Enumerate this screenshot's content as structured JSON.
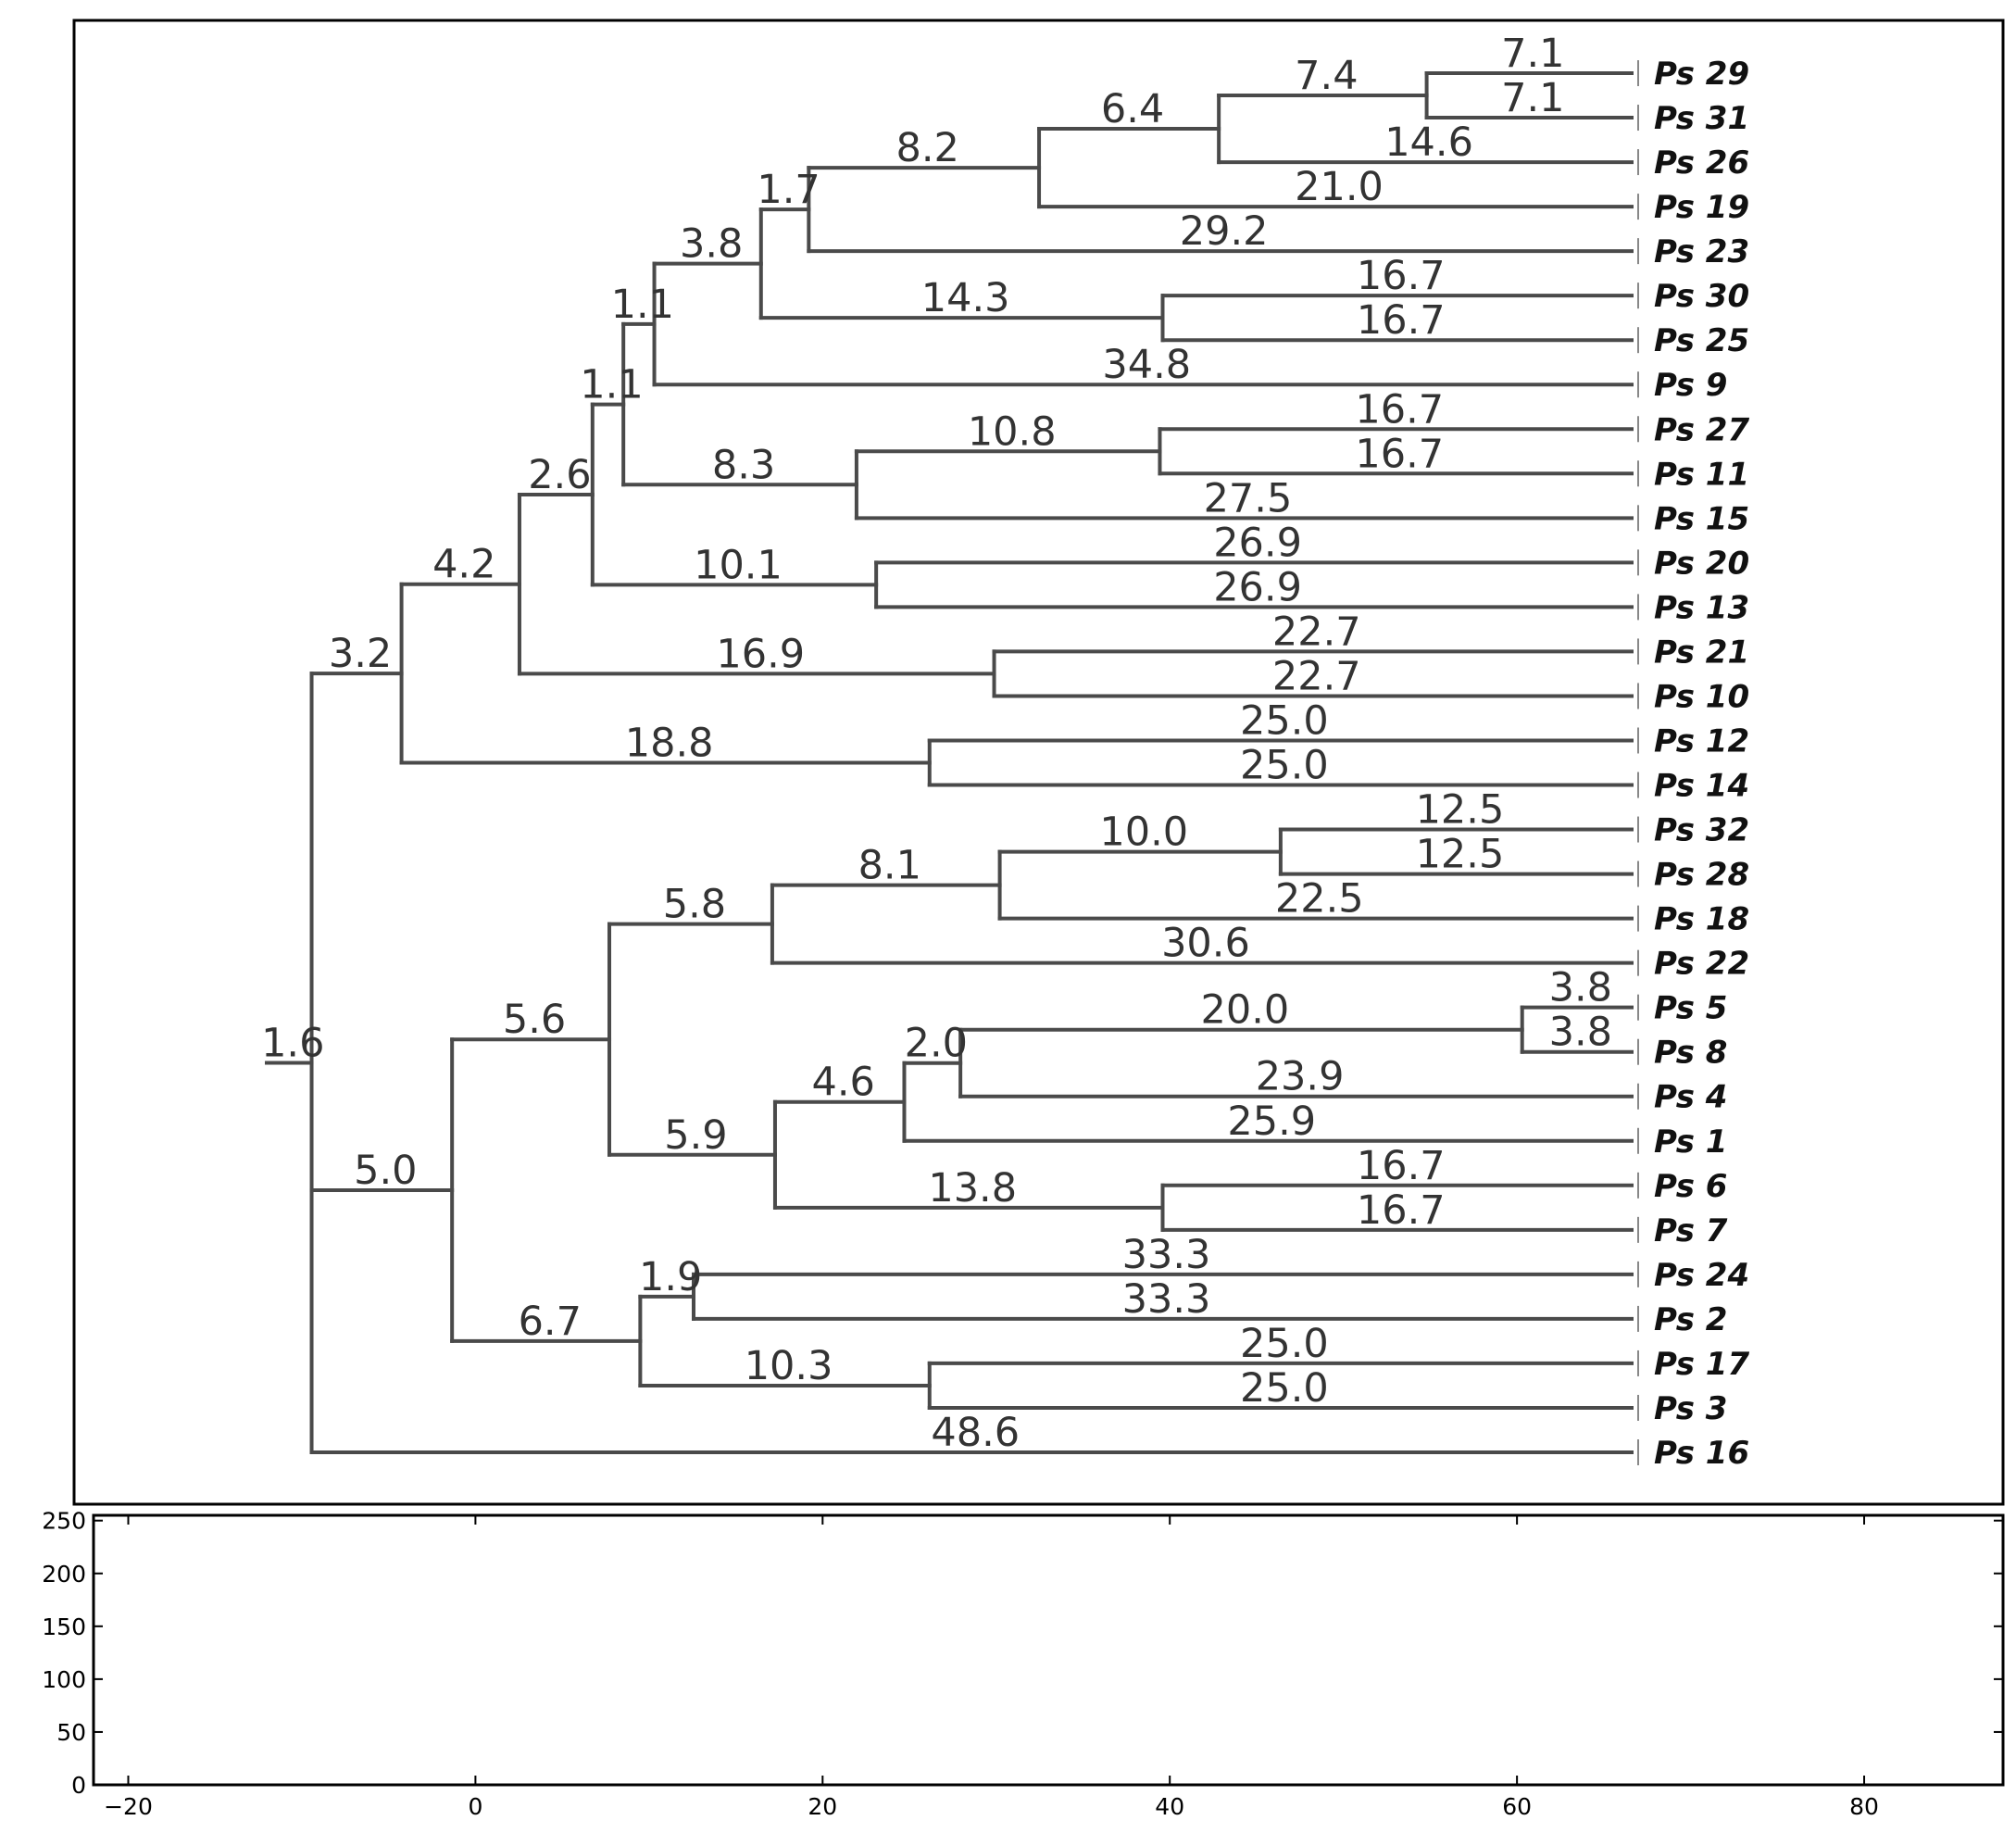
{
  "chart_data": [
    {
      "type": "dendrogram",
      "title": "",
      "leaves": [
        "Ps 29",
        "Ps 31",
        "Ps 26",
        "Ps 19",
        "Ps 23",
        "Ps 30",
        "Ps 25",
        "Ps 9",
        "Ps 27",
        "Ps 11",
        "Ps 15",
        "Ps 20",
        "Ps 13",
        "Ps 21",
        "Ps 10",
        "Ps 12",
        "Ps 14",
        "Ps 32",
        "Ps 28",
        "Ps 18",
        "Ps 22",
        "Ps 5",
        "Ps 8",
        "Ps 4",
        "Ps 1",
        "Ps 6",
        "Ps 7",
        "Ps 24",
        "Ps 2",
        "Ps 17",
        "Ps 3",
        "Ps 16"
      ],
      "tree": {
        "b": "1.6",
        "c": [
          {
            "b": "3.2",
            "c": [
              {
                "b": "4.2",
                "c": [
                  {
                    "b": "2.6",
                    "c": [
                      {
                        "b": "1.1",
                        "c": [
                          {
                            "b": "1.1",
                            "c": [
                              {
                                "b": "3.8",
                                "c": [
                                  {
                                    "b": "1.7",
                                    "c": [
                                      {
                                        "b": "8.2",
                                        "c": [
                                          {
                                            "b": "6.4",
                                            "c": [
                                              {
                                                "b": "7.4",
                                                "c": [
                                                  {
                                                    "b": "7.1",
                                                    "l": 0
                                                  },
                                                  {
                                                    "b": "7.1",
                                                    "l": 1
                                                  }
                                                ]
                                              },
                                              {
                                                "b": "14.6",
                                                "l": 2
                                              }
                                            ]
                                          },
                                          {
                                            "b": "21.0",
                                            "l": 3
                                          }
                                        ]
                                      },
                                      {
                                        "b": "29.2",
                                        "l": 4
                                      }
                                    ]
                                  },
                                  {
                                    "b": "14.3",
                                    "c": [
                                      {
                                        "b": "16.7",
                                        "l": 5
                                      },
                                      {
                                        "b": "16.7",
                                        "l": 6
                                      }
                                    ]
                                  }
                                ]
                              },
                              {
                                "b": "34.8",
                                "l": 7
                              }
                            ]
                          },
                          {
                            "b": "8.3",
                            "c": [
                              {
                                "b": "10.8",
                                "c": [
                                  {
                                    "b": "16.7",
                                    "l": 8
                                  },
                                  {
                                    "b": "16.7",
                                    "l": 9
                                  }
                                ]
                              },
                              {
                                "b": "27.5",
                                "l": 10
                              }
                            ]
                          }
                        ]
                      },
                      {
                        "b": "10.1",
                        "c": [
                          {
                            "b": "26.9",
                            "l": 11
                          },
                          {
                            "b": "26.9",
                            "l": 12
                          }
                        ]
                      }
                    ]
                  },
                  {
                    "b": "16.9",
                    "c": [
                      {
                        "b": "22.7",
                        "l": 13
                      },
                      {
                        "b": "22.7",
                        "l": 14
                      }
                    ]
                  }
                ]
              },
              {
                "b": "18.8",
                "c": [
                  {
                    "b": "25.0",
                    "l": 15
                  },
                  {
                    "b": "25.0",
                    "l": 16
                  }
                ]
              }
            ]
          },
          {
            "b": "5.0",
            "c": [
              {
                "b": "5.6",
                "c": [
                  {
                    "b": "5.8",
                    "c": [
                      {
                        "b": "8.1",
                        "c": [
                          {
                            "b": "10.0",
                            "c": [
                              {
                                "b": "12.5",
                                "l": 17
                              },
                              {
                                "b": "12.5",
                                "l": 18
                              }
                            ]
                          },
                          {
                            "b": "22.5",
                            "l": 19
                          }
                        ]
                      },
                      {
                        "b": "30.6",
                        "l": 20
                      }
                    ]
                  },
                  {
                    "b": "5.9",
                    "c": [
                      {
                        "b": "4.6",
                        "c": [
                          {
                            "b": "2.0",
                            "c": [
                              {
                                "b": "20.0",
                                "c": [
                                  {
                                    "b": "3.8",
                                    "l": 21
                                  },
                                  {
                                    "b": "3.8",
                                    "l": 22
                                  }
                                ]
                              },
                              {
                                "b": "23.9",
                                "l": 23
                              }
                            ]
                          },
                          {
                            "b": "25.9",
                            "l": 24
                          }
                        ]
                      },
                      {
                        "b": "13.8",
                        "c": [
                          {
                            "b": "16.7",
                            "l": 25
                          },
                          {
                            "b": "16.7",
                            "l": 26
                          }
                        ]
                      }
                    ]
                  }
                ]
              },
              {
                "b": "6.7",
                "c": [
                  {
                    "b": "1.9",
                    "c": [
                      {
                        "b": "33.3",
                        "l": 27
                      },
                      {
                        "b": "33.3",
                        "l": 28
                      }
                    ]
                  },
                  {
                    "b": "10.3",
                    "c": [
                      {
                        "b": "25.0",
                        "l": 29
                      },
                      {
                        "b": "25.0",
                        "l": 30
                      }
                    ]
                  }
                ]
              }
            ]
          },
          {
            "b": "48.6",
            "l": 31
          }
        ]
      }
    },
    {
      "type": "histogram",
      "title": "",
      "xlabel": "",
      "ylabel": "",
      "xlim": [
        -22,
        88
      ],
      "ylim": [
        0,
        255
      ],
      "xticks": [
        -20,
        0,
        20,
        40,
        60,
        80
      ],
      "yticks": [
        0,
        50,
        100,
        150,
        200,
        250
      ],
      "xtick_labels": [
        "−20",
        "0",
        "20",
        "40",
        "60",
        "80"
      ],
      "ytick_labels": [
        "0",
        "50",
        "100",
        "150",
        "200",
        "250"
      ],
      "values": []
    }
  ]
}
